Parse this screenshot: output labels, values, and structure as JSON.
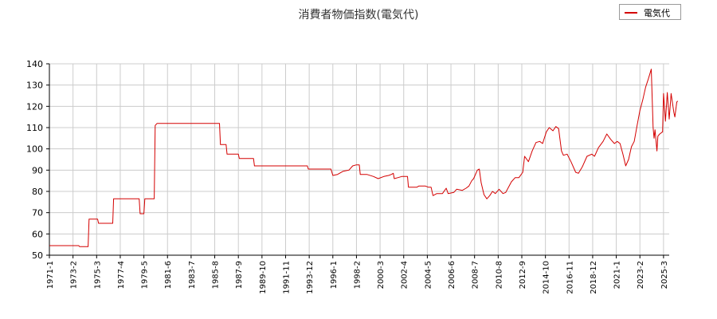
{
  "chart_data": {
    "type": "line",
    "title": "消費者物価指数(電気代)",
    "xlabel": "",
    "ylabel": "",
    "ylim": [
      50,
      140
    ],
    "yticks": [
      50,
      60,
      70,
      80,
      90,
      100,
      110,
      120,
      130,
      140
    ],
    "xlim": [
      "1971-01",
      "2025-09"
    ],
    "xtick_labels": [
      "1971-1",
      "1973-2",
      "1975-3",
      "1977-4",
      "1979-5",
      "1981-6",
      "1983-7",
      "1985-8",
      "1987-9",
      "1989-10",
      "1991-11",
      "1993-12",
      "1996-1",
      "1998-2",
      "2000-3",
      "2002-4",
      "2004-5",
      "2006-6",
      "2008-7",
      "2010-8",
      "2012-9",
      "2014-10",
      "2016-11",
      "2018-12",
      "2021-1",
      "2023-2",
      "2025-3"
    ],
    "grid": true,
    "legend_position": "top-right",
    "series": [
      {
        "name": "電気代",
        "color": "#d40000",
        "points": [
          [
            "1971-01",
            54.5
          ],
          [
            "1973-08",
            54.5
          ],
          [
            "1973-09",
            54.0
          ],
          [
            "1974-06",
            54.0
          ],
          [
            "1974-07",
            67.0
          ],
          [
            "1975-04",
            67.0
          ],
          [
            "1975-05",
            65.0
          ],
          [
            "1976-08",
            65.0
          ],
          [
            "1976-09",
            76.5
          ],
          [
            "1978-12",
            76.5
          ],
          [
            "1979-01",
            69.5
          ],
          [
            "1979-05",
            69.5
          ],
          [
            "1979-06",
            76.5
          ],
          [
            "1980-04",
            76.5
          ],
          [
            "1980-05",
            111.0
          ],
          [
            "1980-07",
            112.0
          ],
          [
            "1986-01",
            112.0
          ],
          [
            "1986-02",
            102.0
          ],
          [
            "1986-08",
            102.0
          ],
          [
            "1986-09",
            97.5
          ],
          [
            "1987-09",
            97.5
          ],
          [
            "1987-10",
            95.5
          ],
          [
            "1989-01",
            95.5
          ],
          [
            "1989-02",
            92.0
          ],
          [
            "1993-10",
            92.0
          ],
          [
            "1993-11",
            90.5
          ],
          [
            "1995-11",
            90.5
          ],
          [
            "1996-01",
            87.5
          ],
          [
            "1996-06",
            88.0
          ],
          [
            "1996-12",
            89.5
          ],
          [
            "1997-06",
            90.0
          ],
          [
            "1997-10",
            92.0
          ],
          [
            "1998-02",
            92.5
          ],
          [
            "1998-05",
            92.5
          ],
          [
            "1998-06",
            88.0
          ],
          [
            "1999-01",
            88.0
          ],
          [
            "1999-08",
            87.0
          ],
          [
            "2000-01",
            86.0
          ],
          [
            "2000-07",
            87.0
          ],
          [
            "2000-12",
            87.5
          ],
          [
            "2001-03",
            88.0
          ],
          [
            "2001-05",
            88.5
          ],
          [
            "2001-06",
            86.0
          ],
          [
            "2001-10",
            86.5
          ],
          [
            "2002-02",
            87.0
          ],
          [
            "2002-08",
            87.0
          ],
          [
            "2002-09",
            82.0
          ],
          [
            "2003-06",
            82.0
          ],
          [
            "2003-08",
            82.5
          ],
          [
            "2004-03",
            82.5
          ],
          [
            "2004-06",
            82.0
          ],
          [
            "2004-09",
            82.0
          ],
          [
            "2004-11",
            78.0
          ],
          [
            "2005-03",
            79.0
          ],
          [
            "2005-09",
            79.0
          ],
          [
            "2006-01",
            81.5
          ],
          [
            "2006-03",
            79.0
          ],
          [
            "2006-09",
            79.5
          ],
          [
            "2006-12",
            81.0
          ],
          [
            "2007-06",
            80.5
          ],
          [
            "2007-10",
            81.5
          ],
          [
            "2008-01",
            82.5
          ],
          [
            "2008-04",
            85.0
          ],
          [
            "2008-06",
            86.0
          ],
          [
            "2008-10",
            90.0
          ],
          [
            "2008-12",
            90.5
          ],
          [
            "2009-02",
            84.0
          ],
          [
            "2009-05",
            78.5
          ],
          [
            "2009-08",
            76.5
          ],
          [
            "2009-11",
            78.0
          ],
          [
            "2010-02",
            80.0
          ],
          [
            "2010-05",
            79.0
          ],
          [
            "2010-09",
            81.0
          ],
          [
            "2011-01",
            79.0
          ],
          [
            "2011-04",
            79.5
          ],
          [
            "2011-10",
            84.5
          ],
          [
            "2012-02",
            86.5
          ],
          [
            "2012-06",
            86.5
          ],
          [
            "2012-10",
            89.0
          ],
          [
            "2012-12",
            96.5
          ],
          [
            "2013-04",
            94.0
          ],
          [
            "2013-08",
            99.0
          ],
          [
            "2013-12",
            103.0
          ],
          [
            "2014-04",
            103.5
          ],
          [
            "2014-07",
            102.5
          ],
          [
            "2014-11",
            108.0
          ],
          [
            "2015-02",
            110.0
          ],
          [
            "2015-06",
            108.5
          ],
          [
            "2015-09",
            110.5
          ],
          [
            "2015-12",
            109.5
          ],
          [
            "2016-03",
            99.0
          ],
          [
            "2016-05",
            97.0
          ],
          [
            "2016-09",
            97.5
          ],
          [
            "2017-01",
            94.0
          ],
          [
            "2017-06",
            89.0
          ],
          [
            "2017-09",
            88.5
          ],
          [
            "2018-01",
            91.5
          ],
          [
            "2018-06",
            96.5
          ],
          [
            "2018-11",
            97.5
          ],
          [
            "2019-02",
            96.5
          ],
          [
            "2019-06",
            100.5
          ],
          [
            "2019-11",
            103.5
          ],
          [
            "2020-03",
            107.0
          ],
          [
            "2020-07",
            104.5
          ],
          [
            "2020-11",
            102.5
          ],
          [
            "2021-02",
            103.5
          ],
          [
            "2021-05",
            102.5
          ],
          [
            "2021-08",
            97.5
          ],
          [
            "2021-11",
            92.0
          ],
          [
            "2022-02",
            95.0
          ],
          [
            "2022-05",
            101.0
          ],
          [
            "2022-08",
            103.5
          ],
          [
            "2022-11",
            111.0
          ],
          [
            "2023-02",
            118.0
          ],
          [
            "2023-05",
            123.0
          ],
          [
            "2023-08",
            129.0
          ],
          [
            "2023-11",
            133.0
          ],
          [
            "2024-02",
            137.5
          ],
          [
            "2024-04",
            110.0
          ],
          [
            "2024-05",
            105.0
          ],
          [
            "2024-06",
            109.0
          ],
          [
            "2024-08",
            99.0
          ],
          [
            "2024-09",
            106.0
          ],
          [
            "2024-11",
            107.0
          ],
          [
            "2025-02",
            108.0
          ],
          [
            "2025-03",
            126.0
          ],
          [
            "2025-05",
            113.0
          ],
          [
            "2025-07",
            126.5
          ],
          [
            "2025-09",
            114.0
          ],
          [
            "2025-11",
            126.0
          ],
          [
            "2026-02",
            117.0
          ],
          [
            "2026-03",
            115.0
          ],
          [
            "2026-05",
            122.0
          ],
          [
            "2026-06",
            122.5
          ]
        ]
      }
    ]
  }
}
